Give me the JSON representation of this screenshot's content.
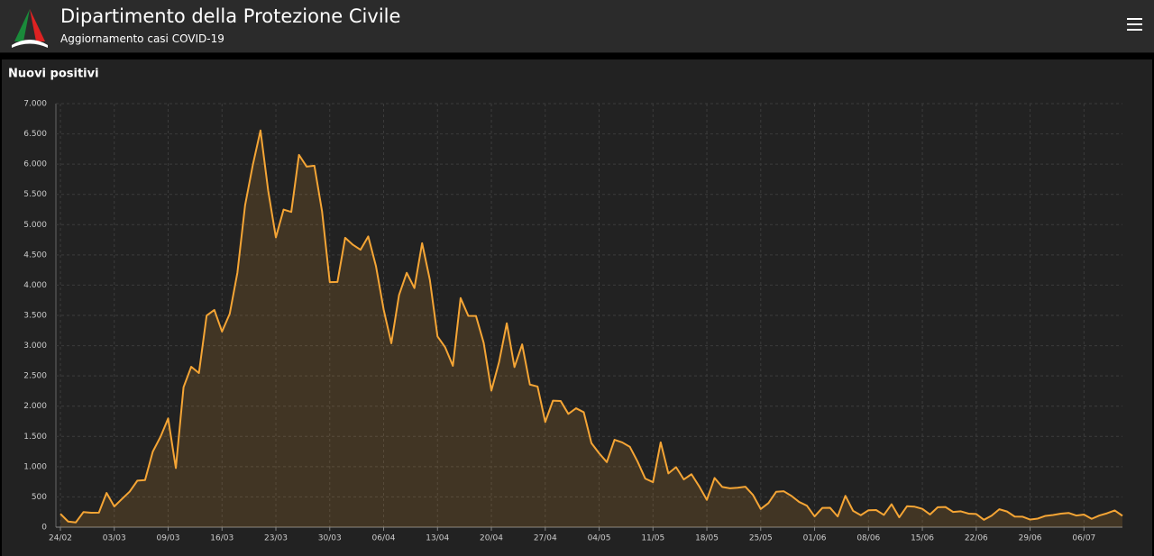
{
  "header": {
    "title": "Dipartimento della Protezione Civile",
    "subtitle": "Aggiornamento casi COVID-19"
  },
  "chart_data": {
    "type": "area",
    "title": "Nuovi positivi",
    "categories": [
      "24/02",
      null,
      null,
      null,
      null,
      null,
      null,
      "03/03",
      null,
      null,
      null,
      null,
      null,
      null,
      "09/03",
      null,
      null,
      null,
      null,
      null,
      null,
      "16/03",
      null,
      null,
      null,
      null,
      null,
      null,
      "23/03",
      null,
      null,
      null,
      null,
      null,
      null,
      "30/03",
      null,
      null,
      null,
      null,
      null,
      null,
      "06/04",
      null,
      null,
      null,
      null,
      null,
      null,
      "13/04",
      null,
      null,
      null,
      null,
      null,
      null,
      "20/04",
      null,
      null,
      null,
      null,
      null,
      null,
      "27/04",
      null,
      null,
      null,
      null,
      null,
      null,
      "04/05",
      null,
      null,
      null,
      null,
      null,
      null,
      "11/05",
      null,
      null,
      null,
      null,
      null,
      null,
      "18/05",
      null,
      null,
      null,
      null,
      null,
      null,
      "25/05",
      null,
      null,
      null,
      null,
      null,
      null,
      "01/06",
      null,
      null,
      null,
      null,
      null,
      null,
      "08/06",
      null,
      null,
      null,
      null,
      null,
      null,
      "15/06",
      null,
      null,
      null,
      null,
      null,
      null,
      "22/06",
      null,
      null,
      null,
      null,
      null,
      null,
      "29/06",
      null,
      null,
      null,
      null,
      null,
      null,
      "06/07",
      null,
      null,
      null,
      null,
      null
    ],
    "values": [
      221,
      93,
      78,
      250,
      238,
      240,
      566,
      342,
      466,
      587,
      769,
      778,
      1247,
      1492,
      1797,
      977,
      2313,
      2651,
      2547,
      3497,
      3590,
      3233,
      3526,
      4207,
      5322,
      5986,
      6557,
      5560,
      4789,
      5249,
      5210,
      6153,
      5959,
      5974,
      5217,
      4050,
      4053,
      4782,
      4668,
      4585,
      4805,
      4316,
      3599,
      3039,
      3836,
      4204,
      3951,
      4694,
      4092,
      3153,
      2972,
      2667,
      3786,
      3493,
      3491,
      3047,
      2256,
      2729,
      3370,
      2646,
      3021,
      2357,
      2324,
      1739,
      2091,
      2086,
      1872,
      1965,
      1900,
      1389,
      1221,
      1075,
      1444,
      1401,
      1327,
      1083,
      802,
      744,
      1402,
      888,
      992,
      789,
      875,
      675,
      451,
      813,
      665,
      642,
      652,
      669,
      531,
      300,
      397,
      584,
      593,
      516,
      416,
      355,
      178,
      318,
      321,
      177,
      518,
      270,
      197,
      280,
      283,
      202,
      379,
      163,
      346,
      338,
      303,
      210,
      329,
      333,
      251,
      262,
      224,
      218,
      122,
      190,
      296,
      259,
      175,
      174,
      126,
      142,
      187,
      201,
      223,
      235,
      192,
      208,
      138,
      193,
      229,
      276,
      188
    ],
    "color": "#f5a535",
    "ylim": [
      0,
      7000
    ],
    "yticks": [
      0,
      500,
      {
        "value": 1000,
        "label": "1.000"
      },
      {
        "value": 1500,
        "label": "1.500"
      },
      {
        "value": 2000,
        "label": "2.000"
      },
      {
        "value": 2500,
        "label": "2.500"
      },
      {
        "value": 3000,
        "label": "3.000"
      },
      {
        "value": 3500,
        "label": "3.500"
      },
      {
        "value": 4000,
        "label": "4.000"
      },
      {
        "value": 4500,
        "label": "4.500"
      },
      {
        "value": 5000,
        "label": "5.000"
      },
      {
        "value": 5500,
        "label": "5.500"
      },
      {
        "value": 6000,
        "label": "6.000"
      },
      {
        "value": 6500,
        "label": "6.500"
      },
      {
        "value": 7000,
        "label": "7.000"
      }
    ],
    "grid": true
  }
}
